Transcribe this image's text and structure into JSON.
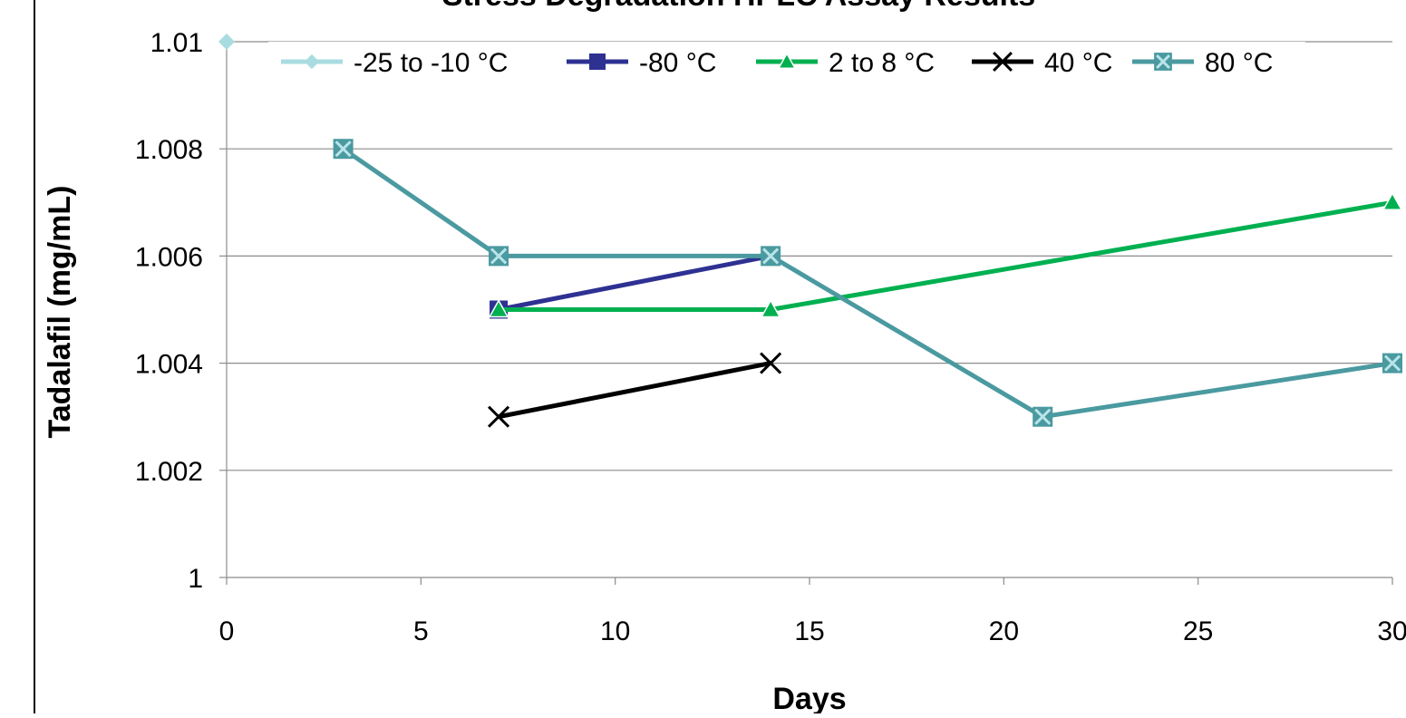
{
  "chart_data": {
    "type": "line",
    "title": "Stress Degradation HPLC Assay Results",
    "xlabel": "Days",
    "ylabel": "Tadalafil (mg/mL)",
    "xlim": [
      0,
      30
    ],
    "ylim": [
      1,
      1.01
    ],
    "x_ticks": [
      "0",
      "5",
      "10",
      "15",
      "20",
      "25",
      "30"
    ],
    "y_ticks": [
      "1",
      "1.002",
      "1.004",
      "1.006",
      "1.008",
      "1.01"
    ],
    "grid": "horizontal",
    "legend_position": "top",
    "series": [
      {
        "name": "-25 to -10 °C",
        "color": "#a8dce0",
        "marker": "diamond",
        "points": [
          {
            "x": 0,
            "y": 1.01
          }
        ]
      },
      {
        "name": "-80 °C",
        "color": "#2e3192",
        "marker": "square",
        "points": [
          {
            "x": 7,
            "y": 1.005
          },
          {
            "x": 14,
            "y": 1.006
          }
        ]
      },
      {
        "name": "2 to 8 °C",
        "color": "#00b050",
        "marker": "triangle",
        "points": [
          {
            "x": 7,
            "y": 1.005
          },
          {
            "x": 14,
            "y": 1.005
          },
          {
            "x": 30,
            "y": 1.007
          }
        ]
      },
      {
        "name": "40 °C",
        "color": "#000000",
        "marker": "x",
        "points": [
          {
            "x": 7,
            "y": 1.003
          },
          {
            "x": 14,
            "y": 1.004
          }
        ]
      },
      {
        "name": "80 °C",
        "color": "#4a9aa0",
        "marker": "square-x",
        "points": [
          {
            "x": 3,
            "y": 1.008
          },
          {
            "x": 7,
            "y": 1.006
          },
          {
            "x": 14,
            "y": 1.006
          },
          {
            "x": 21,
            "y": 1.003
          },
          {
            "x": 30,
            "y": 1.004
          }
        ]
      }
    ]
  }
}
